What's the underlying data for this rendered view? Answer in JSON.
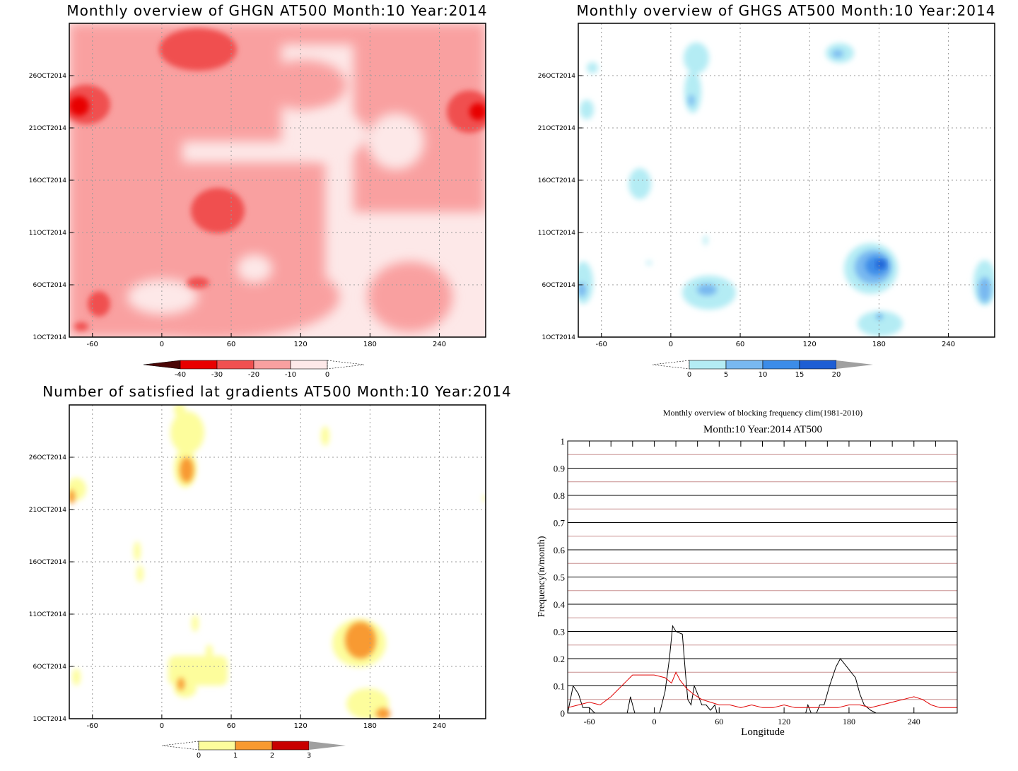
{
  "chart_data": [
    {
      "type": "heatmap",
      "title": "Monthly overview of GHGN AT500 Month:10 Year:2014",
      "x_ticks": [
        "-60",
        "0",
        "60",
        "120",
        "180",
        "240"
      ],
      "y_ticks": [
        "1OCT2014",
        "6OCT2014",
        "11OCT2014",
        "16OCT2014",
        "21OCT2014",
        "26OCT2014"
      ],
      "colorbar": {
        "labels": [
          "-40",
          "-30",
          "-20",
          "-10",
          "0"
        ],
        "colors": [
          "#4a0606",
          "#e80000",
          "#f05050",
          "#f9a0a0",
          "#fde8e8"
        ]
      }
    },
    {
      "type": "heatmap",
      "title": "Monthly overview of GHGS AT500 Month:10 Year:2014",
      "x_ticks": [
        "-60",
        "0",
        "60",
        "120",
        "180",
        "240"
      ],
      "y_ticks": [
        "1OCT2014",
        "6OCT2014",
        "11OCT2014",
        "16OCT2014",
        "21OCT2014",
        "26OCT2014"
      ],
      "colorbar": {
        "labels": [
          "0",
          "5",
          "10",
          "15",
          "20"
        ],
        "colors": [
          "#b4ecf4",
          "#78b8f0",
          "#3c8ce8",
          "#1e5ed4",
          "#a0a0a0"
        ]
      }
    },
    {
      "type": "heatmap",
      "title": "Number of satisfied lat gradients AT500 Month:10 Year:2014",
      "x_ticks": [
        "-60",
        "0",
        "60",
        "120",
        "180",
        "240"
      ],
      "y_ticks": [
        "1OCT2014",
        "6OCT2014",
        "11OCT2014",
        "16OCT2014",
        "21OCT2014",
        "26OCT2014"
      ],
      "colorbar": {
        "labels": [
          "0",
          "1",
          "2",
          "3"
        ],
        "colors": [
          "#fdfd9c",
          "#f89a30",
          "#c80000",
          "#a0a0a0"
        ]
      }
    },
    {
      "type": "line",
      "title": "Monthly overview of blocking frequency clim(1981-2010)",
      "subtitle": "Month:10 Year:2014  AT500",
      "xlabel": "Longitude",
      "ylabel": "Frequency(n/month)",
      "xlim": [
        -80,
        280
      ],
      "ylim": [
        0,
        1
      ],
      "x_ticks": [
        -60,
        0,
        60,
        120,
        180,
        240
      ],
      "y_ticks": [
        0,
        0.1,
        0.2,
        0.3,
        0.4,
        0.5,
        0.6,
        0.7,
        0.8,
        0.9,
        1
      ],
      "series": [
        {
          "color": "#000000",
          "points": [
            [
              -80,
              0
            ],
            [
              -75,
              0.1
            ],
            [
              -70,
              0.07
            ],
            [
              -66,
              0.02
            ],
            [
              -60,
              0.02
            ],
            [
              -55,
              0
            ],
            [
              -25,
              0
            ],
            [
              -22,
              0.06
            ],
            [
              -18,
              0
            ],
            [
              5,
              0
            ],
            [
              10,
              0.08
            ],
            [
              14,
              0.2
            ],
            [
              17,
              0.32
            ],
            [
              20,
              0.3
            ],
            [
              26,
              0.29
            ],
            [
              29,
              0.14
            ],
            [
              31,
              0.05
            ],
            [
              34,
              0.03
            ],
            [
              37,
              0.1
            ],
            [
              40,
              0.07
            ],
            [
              44,
              0.03
            ],
            [
              48,
              0.03
            ],
            [
              52,
              0.01
            ],
            [
              56,
              0.03
            ],
            [
              58,
              0
            ],
            [
              140,
              0
            ],
            [
              142,
              0.03
            ],
            [
              145,
              0
            ],
            [
              150,
              0
            ],
            [
              153,
              0.03
            ],
            [
              157,
              0.03
            ],
            [
              162,
              0.1
            ],
            [
              168,
              0.17
            ],
            [
              172,
              0.2
            ],
            [
              176,
              0.18
            ],
            [
              182,
              0.15
            ],
            [
              186,
              0.13
            ],
            [
              190,
              0.07
            ],
            [
              194,
              0.03
            ],
            [
              200,
              0.01
            ],
            [
              205,
              0
            ]
          ]
        },
        {
          "color": "#e00000",
          "points": [
            [
              -80,
              0.02
            ],
            [
              -70,
              0.03
            ],
            [
              -60,
              0.04
            ],
            [
              -50,
              0.03
            ],
            [
              -40,
              0.06
            ],
            [
              -30,
              0.1
            ],
            [
              -25,
              0.12
            ],
            [
              -20,
              0.14
            ],
            [
              -10,
              0.14
            ],
            [
              0,
              0.14
            ],
            [
              10,
              0.13
            ],
            [
              16,
              0.11
            ],
            [
              20,
              0.15
            ],
            [
              24,
              0.12
            ],
            [
              30,
              0.09
            ],
            [
              36,
              0.07
            ],
            [
              44,
              0.05
            ],
            [
              52,
              0.04
            ],
            [
              60,
              0.03
            ],
            [
              70,
              0.03
            ],
            [
              80,
              0.02
            ],
            [
              90,
              0.03
            ],
            [
              100,
              0.02
            ],
            [
              110,
              0.02
            ],
            [
              120,
              0.03
            ],
            [
              130,
              0.02
            ],
            [
              140,
              0.02
            ],
            [
              150,
              0.02
            ],
            [
              160,
              0.02
            ],
            [
              170,
              0.02
            ],
            [
              180,
              0.03
            ],
            [
              190,
              0.03
            ],
            [
              200,
              0.02
            ],
            [
              210,
              0.03
            ],
            [
              220,
              0.04
            ],
            [
              230,
              0.05
            ],
            [
              240,
              0.06
            ],
            [
              248,
              0.05
            ],
            [
              256,
              0.03
            ],
            [
              264,
              0.02
            ],
            [
              272,
              0.02
            ],
            [
              280,
              0.02
            ]
          ]
        }
      ]
    }
  ]
}
